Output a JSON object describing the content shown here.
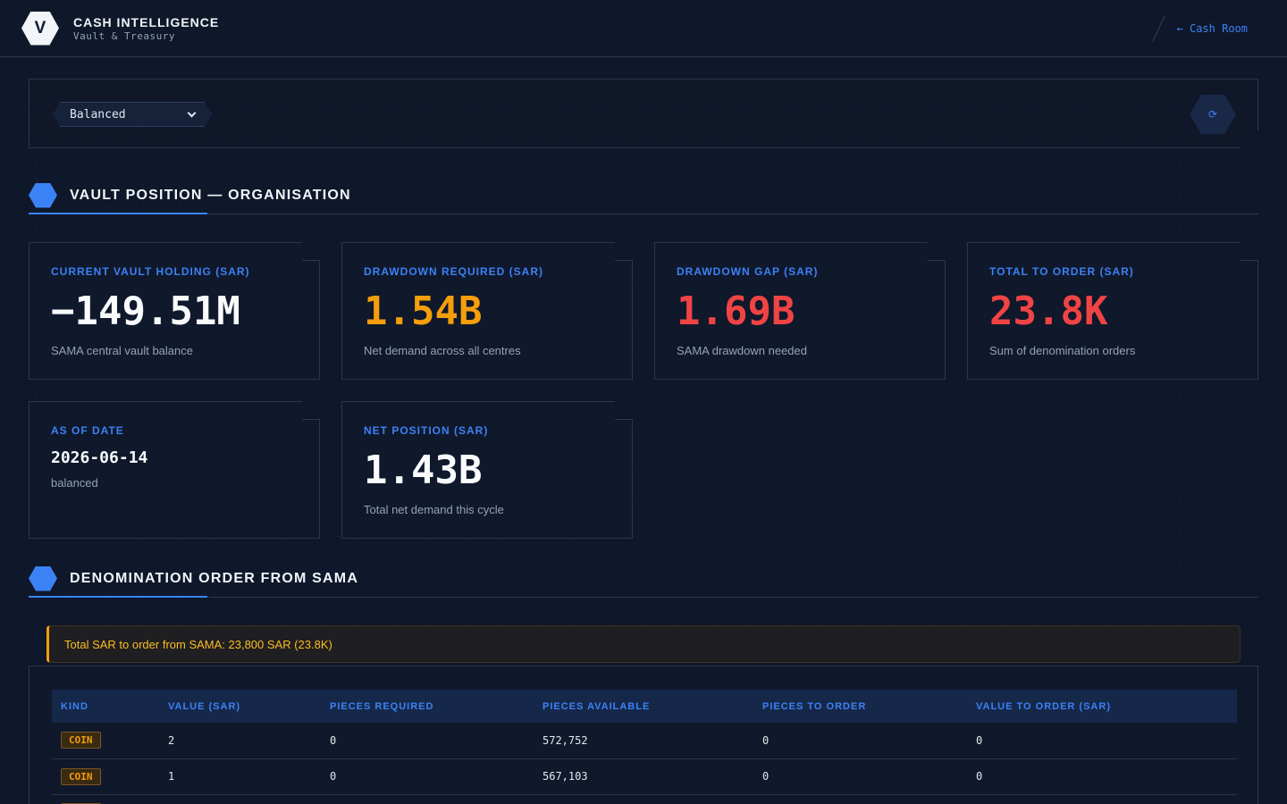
{
  "header": {
    "logo_letter": "V",
    "title": "CASH INTELLIGENCE",
    "subtitle": "Vault & Treasury",
    "back_link": "← Cash Room"
  },
  "toolbar": {
    "scenario_value": "Balanced",
    "refresh_icon": "⟳"
  },
  "sections": {
    "vault_title": "VAULT POSITION — ORGANISATION",
    "order_title": "DENOMINATION ORDER FROM SAMA"
  },
  "cards": [
    {
      "label": "CURRENT VAULT HOLDING (SAR)",
      "value": "−149.51M",
      "sub": "SAMA central vault balance",
      "color": "#f8fafc"
    },
    {
      "label": "DRAWDOWN REQUIRED (SAR)",
      "value": "1.54B",
      "sub": "Net demand across all centres",
      "color": "#f59e0b"
    },
    {
      "label": "DRAWDOWN GAP (SAR)",
      "value": "1.69B",
      "sub": "SAMA drawdown needed",
      "color": "#ef4444"
    },
    {
      "label": "TOTAL TO ORDER (SAR)",
      "value": "23.8K",
      "sub": "Sum of denomination orders",
      "color": "#ef4444"
    },
    {
      "label": "AS OF DATE",
      "value": "2026-06-14",
      "sub": "balanced",
      "color": "#f8fafc"
    },
    {
      "label": "NET POSITION (SAR)",
      "value": "1.43B",
      "sub": "Total net demand this cycle",
      "color": "#f8fafc"
    }
  ],
  "banner": "Total SAR to order from SAMA: 23,800 SAR (23.8K)",
  "table": {
    "columns": [
      "KIND",
      "VALUE (SAR)",
      "PIECES REQUIRED",
      "PIECES AVAILABLE",
      "PIECES TO ORDER",
      "VALUE TO ORDER (SAR)"
    ],
    "rows": [
      {
        "kind": "COIN",
        "value": "2",
        "required": "0",
        "available": "572,752",
        "to_order": "0",
        "value_to_order": "0"
      },
      {
        "kind": "COIN",
        "value": "1",
        "required": "0",
        "available": "567,103",
        "to_order": "0",
        "value_to_order": "0"
      },
      {
        "kind": "",
        "value": "",
        "required": "",
        "available": "",
        "to_order": "",
        "value_to_order": ""
      }
    ]
  }
}
